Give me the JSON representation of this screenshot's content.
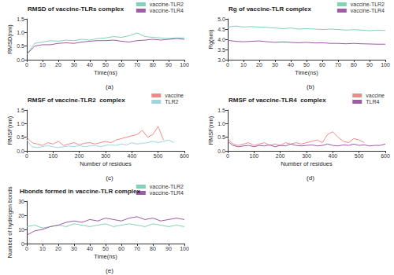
{
  "chart_data": [
    {
      "type": "line",
      "title": "RMSD of vaccine-TLRs complex",
      "caption": "(a)",
      "xlabel": "Time(ns)",
      "ylabel": "RMSD(nm)",
      "xlim": [
        0,
        100
      ],
      "xticks": [
        0,
        10,
        20,
        30,
        40,
        50,
        60,
        70,
        80,
        90,
        100
      ],
      "ylim": [
        0,
        1.5
      ],
      "yticks": [
        {
          "value": 0,
          "label": "0.0"
        },
        0.5,
        {
          "value": 1,
          "label": "1.0"
        },
        1.5
      ],
      "grid": false,
      "legend": "upper right",
      "series": [
        {
          "name": "vaccine-TLR2",
          "color": "#7fd3b8",
          "x": [
            0,
            5,
            10,
            15,
            20,
            25,
            30,
            35,
            40,
            45,
            50,
            55,
            60,
            65,
            70,
            75,
            80,
            85,
            90,
            95,
            100
          ],
          "values": [
            0.2,
            0.6,
            0.65,
            0.7,
            0.68,
            0.72,
            0.7,
            0.75,
            0.72,
            0.78,
            0.8,
            0.85,
            0.82,
            0.88,
            0.98,
            0.85,
            0.82,
            0.8,
            0.78,
            0.8,
            0.8
          ]
        },
        {
          "name": "vaccine-TLR4",
          "color": "#a05aa8",
          "x": [
            0,
            5,
            10,
            15,
            20,
            25,
            30,
            35,
            40,
            45,
            50,
            55,
            60,
            65,
            70,
            75,
            80,
            85,
            90,
            95,
            100
          ],
          "values": [
            0.2,
            0.5,
            0.55,
            0.55,
            0.6,
            0.62,
            0.6,
            0.65,
            0.68,
            0.7,
            0.7,
            0.72,
            0.68,
            0.65,
            0.7,
            0.72,
            0.75,
            0.72,
            0.75,
            0.78,
            0.75
          ]
        }
      ]
    },
    {
      "type": "line",
      "title": "Rg of vaccine-TLR complex",
      "caption": "(b)",
      "xlabel": "Time(ns)",
      "ylabel": "Rg(nm)",
      "xlim": [
        0,
        100
      ],
      "xticks": [
        0,
        10,
        20,
        30,
        40,
        50,
        60,
        70,
        80,
        90,
        100
      ],
      "ylim": [
        3,
        5
      ],
      "yticks": [
        {
          "value": 3,
          "label": "3.0"
        },
        3.5,
        {
          "value": 4,
          "label": "4.0"
        },
        4.5,
        {
          "value": 5,
          "label": "5.0"
        }
      ],
      "grid": false,
      "legend": "upper right",
      "series": [
        {
          "name": "vaccine-TLR2",
          "color": "#7fd3b8",
          "x": [
            0,
            5,
            10,
            15,
            20,
            25,
            30,
            35,
            40,
            45,
            50,
            55,
            60,
            65,
            70,
            75,
            80,
            85,
            90,
            95,
            100
          ],
          "values": [
            4.6,
            4.65,
            4.6,
            4.62,
            4.6,
            4.58,
            4.55,
            4.52,
            4.55,
            4.5,
            4.52,
            4.5,
            4.48,
            4.5,
            4.48,
            4.45,
            4.47,
            4.45,
            4.42,
            4.45,
            4.43
          ]
        },
        {
          "name": "vaccine-TLR4",
          "color": "#a05aa8",
          "x": [
            0,
            5,
            10,
            15,
            20,
            25,
            30,
            35,
            40,
            45,
            50,
            55,
            60,
            65,
            70,
            75,
            80,
            85,
            90,
            95,
            100
          ],
          "values": [
            3.95,
            3.9,
            3.88,
            3.9,
            3.92,
            3.88,
            3.85,
            3.87,
            3.85,
            3.83,
            3.85,
            3.82,
            3.83,
            3.8,
            3.8,
            3.78,
            3.8,
            3.78,
            3.77,
            3.76,
            3.76
          ]
        }
      ]
    },
    {
      "type": "line",
      "title": "RMSF of vaccine-TLR2  complex",
      "caption": "(c)",
      "xlabel": "Number of residues",
      "ylabel": "RMSF(nm)",
      "xlim": [
        0,
        600
      ],
      "xticks": [
        0,
        100,
        200,
        300,
        400,
        500,
        600
      ],
      "ylim": [
        0,
        1.5
      ],
      "yticks": [
        {
          "value": 0,
          "label": "0.0"
        },
        0.5,
        {
          "value": 1,
          "label": "1.0"
        },
        1.5
      ],
      "grid": false,
      "legend": "upper right",
      "series": [
        {
          "name": "vaccine",
          "color": "#f08a8a",
          "x": [
            0,
            20,
            40,
            60,
            80,
            100,
            120,
            140,
            160,
            180,
            200,
            220,
            240,
            260,
            280,
            300,
            320,
            340,
            360,
            380,
            400,
            420,
            440,
            460,
            480,
            500,
            520
          ],
          "values": [
            0.5,
            0.3,
            0.25,
            0.2,
            0.3,
            0.25,
            0.35,
            0.2,
            0.25,
            0.3,
            0.22,
            0.28,
            0.3,
            0.25,
            0.3,
            0.35,
            0.3,
            0.4,
            0.45,
            0.5,
            0.55,
            0.6,
            0.75,
            0.5,
            0.6,
            0.9,
            0.4
          ]
        },
        {
          "name": "TLR2",
          "color": "#9ed6df",
          "x": [
            0,
            20,
            40,
            60,
            80,
            100,
            120,
            140,
            160,
            180,
            200,
            220,
            240,
            260,
            280,
            300,
            320,
            340,
            360,
            380,
            400,
            420,
            440,
            460,
            480,
            500,
            520,
            540,
            560
          ],
          "values": [
            0.4,
            0.15,
            0.12,
            0.15,
            0.2,
            0.15,
            0.12,
            0.15,
            0.18,
            0.15,
            0.2,
            0.15,
            0.18,
            0.2,
            0.15,
            0.2,
            0.22,
            0.2,
            0.25,
            0.22,
            0.3,
            0.25,
            0.28,
            0.3,
            0.35,
            0.3,
            0.35,
            0.4,
            0.3
          ]
        }
      ]
    },
    {
      "type": "line",
      "title": "RMSF of vaccine-TLR4  complex",
      "caption": "(d)",
      "xlabel": "Number of residues",
      "ylabel": "RMSF(nm)",
      "xlim": [
        0,
        600
      ],
      "xticks": [
        0,
        100,
        200,
        300,
        400,
        500,
        600
      ],
      "ylim": [
        0,
        1.5
      ],
      "yticks": [
        {
          "value": 0,
          "label": "0.0"
        },
        0.5,
        {
          "value": 1,
          "label": "1.0"
        },
        1.5
      ],
      "grid": false,
      "legend": "upper right",
      "series": [
        {
          "name": "vaccine",
          "color": "#f08a8a",
          "x": [
            0,
            20,
            40,
            60,
            80,
            100,
            120,
            140,
            160,
            180,
            200,
            220,
            240,
            260,
            280,
            300,
            320,
            340,
            360,
            380,
            400,
            420,
            440,
            460,
            480,
            500,
            520
          ],
          "values": [
            0.45,
            0.25,
            0.2,
            0.25,
            0.3,
            0.2,
            0.25,
            0.3,
            0.2,
            0.25,
            0.2,
            0.3,
            0.25,
            0.3,
            0.25,
            0.3,
            0.35,
            0.4,
            0.3,
            0.6,
            0.7,
            0.5,
            0.35,
            0.3,
            0.45,
            0.4,
            0.3
          ]
        },
        {
          "name": "TLR4",
          "color": "#a05aa8",
          "x": [
            0,
            20,
            40,
            60,
            80,
            100,
            120,
            140,
            160,
            180,
            200,
            220,
            240,
            260,
            280,
            300,
            320,
            340,
            360,
            380,
            400,
            420,
            440,
            460,
            480,
            500,
            520,
            540,
            560,
            580,
            600
          ],
          "values": [
            0.35,
            0.2,
            0.15,
            0.18,
            0.2,
            0.15,
            0.2,
            0.18,
            0.22,
            0.15,
            0.2,
            0.18,
            0.25,
            0.2,
            0.18,
            0.2,
            0.22,
            0.18,
            0.2,
            0.25,
            0.2,
            0.18,
            0.22,
            0.2,
            0.25,
            0.2,
            0.22,
            0.18,
            0.2,
            0.2,
            0.25
          ]
        }
      ]
    },
    {
      "type": "line",
      "title": "Hbonds formed in vaccine-TLR complex",
      "caption": "(e)",
      "xlabel": "Time(ns)",
      "ylabel": "Number of hydrogen bonds",
      "xlim": [
        0,
        100
      ],
      "xticks": [
        0,
        10,
        20,
        30,
        40,
        50,
        60,
        70,
        80,
        90,
        100
      ],
      "ylim": [
        0,
        30
      ],
      "yticks": [
        0,
        10,
        20,
        30
      ],
      "grid": false,
      "legend": "upper right",
      "series": [
        {
          "name": "vaccine-TLR2",
          "color": "#7fd3b8",
          "x": [
            0,
            5,
            10,
            15,
            20,
            25,
            30,
            35,
            40,
            45,
            50,
            55,
            60,
            65,
            70,
            75,
            80,
            85,
            90,
            95,
            100
          ],
          "values": [
            12,
            13,
            11,
            12,
            13,
            12,
            14,
            13,
            12,
            13,
            14,
            12,
            13,
            14,
            13,
            12,
            14,
            13,
            12,
            13,
            12
          ]
        },
        {
          "name": "vaccine-TLR4",
          "color": "#a05aa8",
          "x": [
            0,
            5,
            10,
            15,
            20,
            25,
            30,
            35,
            40,
            45,
            50,
            55,
            60,
            65,
            70,
            75,
            80,
            85,
            90,
            95,
            100
          ],
          "values": [
            6,
            9,
            10,
            12,
            13,
            15,
            16,
            15,
            17,
            16,
            18,
            17,
            16,
            18,
            19,
            17,
            18,
            16,
            17,
            18,
            17
          ]
        }
      ]
    }
  ]
}
